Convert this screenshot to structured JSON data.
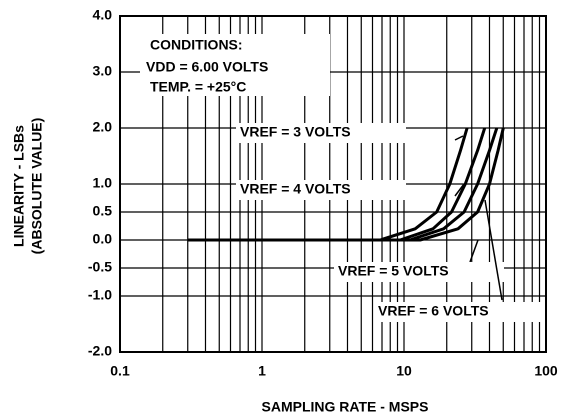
{
  "chart_data": {
    "type": "line",
    "xlabel": "SAMPLING RATE - MSPS",
    "ylabel": [
      "LINEARITY - LSBs",
      "(ABSOLUTE VALUE)"
    ],
    "annotations": [
      "CONDITIONS:",
      "VDD = 6.00 VOLTS",
      "TEMP. = +25°C"
    ],
    "xscale": "log",
    "xlim": [
      0.1,
      100
    ],
    "xticks": [
      0.1,
      1,
      10,
      100
    ],
    "xminorticks": [
      0.2,
      0.3,
      0.4,
      0.5,
      0.6,
      0.7,
      0.8,
      0.9,
      2,
      3,
      4,
      5,
      6,
      7,
      8,
      9,
      20,
      30,
      40,
      50,
      60,
      70,
      80,
      90
    ],
    "ylim": [
      -2,
      4
    ],
    "yticks": [
      {
        "value": 4,
        "label": "4.0"
      },
      {
        "value": 3,
        "label": "3.0"
      },
      {
        "value": 2,
        "label": "2.0"
      },
      {
        "value": 1,
        "label": "1.0"
      },
      0.5,
      {
        "value": 0,
        "label": "0.0"
      },
      -0.5,
      {
        "value": -1,
        "label": "-1.0"
      },
      {
        "value": -2,
        "label": "-2.0"
      }
    ],
    "grid": true,
    "series": [
      {
        "name": "VREF = 3 VOLTS",
        "color": "#000000",
        "x": [
          0.3,
          6.8,
          12,
          17,
          21,
          25,
          27.8
        ],
        "values": [
          0,
          0,
          0.2,
          0.5,
          1.0,
          1.6,
          2.0
        ]
      },
      {
        "name": "VREF = 4 VOLTS",
        "color": "#000000",
        "x": [
          0.3,
          9.4,
          16,
          21.6,
          27,
          33,
          37
        ],
        "values": [
          0,
          0,
          0.2,
          0.5,
          1.0,
          1.6,
          2.0
        ]
      },
      {
        "name": "VREF = 5 VOLTS",
        "color": "#000000",
        "x": [
          0.3,
          11,
          19,
          26.5,
          33,
          40,
          45
        ],
        "values": [
          0,
          0,
          0.2,
          0.5,
          1.0,
          1.6,
          2.0
        ]
      },
      {
        "name": "VREF = 6 VOLTS",
        "color": "#000000",
        "x": [
          0.3,
          13,
          24,
          33,
          40,
          46,
          50
        ],
        "values": [
          0,
          0,
          0.2,
          0.5,
          1.0,
          1.6,
          2.0
        ]
      }
    ]
  }
}
